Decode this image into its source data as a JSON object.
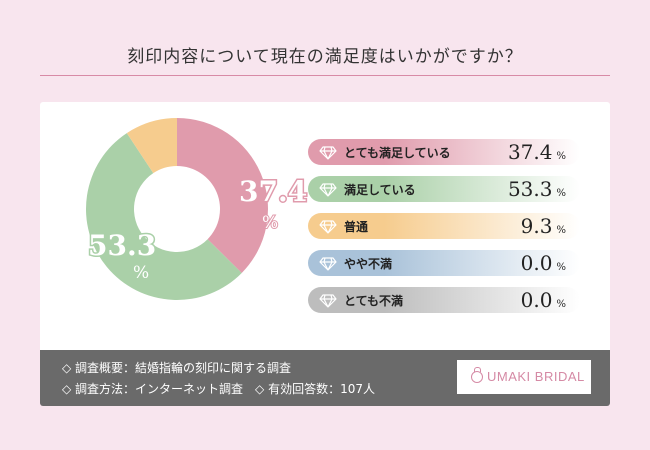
{
  "title": "刻印内容について現在の満足度はいかがですか？",
  "chart_data": {
    "type": "pie",
    "categories": [
      "とても満足している",
      "満足している",
      "普通",
      "やや不満",
      "とても不満"
    ],
    "values": [
      37.4,
      53.3,
      9.3,
      0.0,
      0.0
    ],
    "colors": [
      "#e09bac",
      "#aad0a8",
      "#f6cc8e",
      "#a9c2d9",
      "#bdbdbd"
    ],
    "donut": true,
    "slice_labels": [
      {
        "value": "37.4",
        "unit": "%"
      },
      {
        "value": "53.3",
        "unit": "%"
      }
    ],
    "legend": [
      {
        "label": "とても満足している",
        "value": "37.4",
        "unit": "%",
        "color": "#e09bac",
        "icon": "diamond-icon"
      },
      {
        "label": "満足している",
        "value": "53.3",
        "unit": "%",
        "color": "#aad0a8",
        "icon": "diamond-icon"
      },
      {
        "label": "普通",
        "value": "9.3",
        "unit": "%",
        "color": "#f6cc8e",
        "icon": "diamond-icon"
      },
      {
        "label": "やや不満",
        "value": "0.0",
        "unit": "%",
        "color": "#a9c2d9",
        "icon": "diamond-icon"
      },
      {
        "label": "とても不満",
        "value": "0.0",
        "unit": "%",
        "color": "#bdbdbd",
        "icon": "diamond-icon"
      }
    ]
  },
  "footer": {
    "line1": "◇ 調査概要：結婚指輪の刻印に関する調査",
    "line2": "◇ 調査方法：インターネット調査　◇ 有効回答数：107人",
    "brand": "UMAKI BRIDAL",
    "brand_color": "#d58aa5"
  }
}
